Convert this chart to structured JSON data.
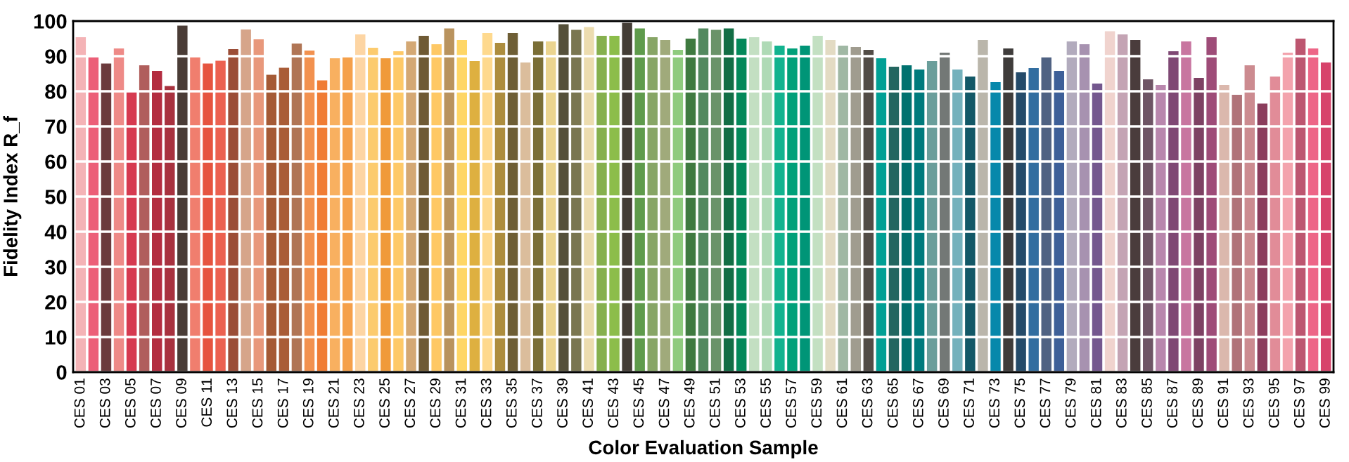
{
  "chart_data": {
    "type": "bar",
    "xlabel": "Color Evaluation Sample",
    "ylabel": "Fidelity Index R_f",
    "categories": [
      "CES 01",
      null,
      "CES 03",
      null,
      "CES 05",
      null,
      "CES 07",
      null,
      "CES 09",
      null,
      "CES 11",
      null,
      "CES 13",
      null,
      "CES 15",
      null,
      "CES 17",
      null,
      "CES 19",
      null,
      "CES 21",
      null,
      "CES 23",
      null,
      "CES 25",
      null,
      "CES 27",
      null,
      "CES 29",
      null,
      "CES 31",
      null,
      "CES 33",
      null,
      "CES 35",
      null,
      "CES 37",
      null,
      "CES 39",
      null,
      "CES 41",
      null,
      "CES 43",
      null,
      "CES 45",
      null,
      "CES 47",
      null,
      "CES 49",
      null,
      "CES 51",
      null,
      "CES 53",
      null,
      "CES 55",
      null,
      "CES 57",
      null,
      "CES 59",
      null,
      "CES 61",
      null,
      "CES 63",
      null,
      "CES 65",
      null,
      "CES 67",
      null,
      "CES 69",
      null,
      "CES 71",
      null,
      "CES 73",
      null,
      "CES 75",
      null,
      "CES 77",
      null,
      "CES 79",
      null,
      "CES 81",
      null,
      "CES 83",
      null,
      "CES 85",
      null,
      "CES 87",
      null,
      "CES 89",
      null,
      "CES 91",
      null,
      "CES 93",
      null,
      "CES 95",
      null,
      "CES 97",
      null,
      "CES 99"
    ],
    "values": [
      95.4,
      89.9,
      87.9,
      92.2,
      79.9,
      87.4,
      85.8,
      81.5,
      98.7,
      89.9,
      87.9,
      88.7,
      92.0,
      97.6,
      94.8,
      84.7,
      86.7,
      93.6,
      91.6,
      83.1,
      89.4,
      89.9,
      96.2,
      92.4,
      89.4,
      91.4,
      94.2,
      95.8,
      93.4,
      97.9,
      94.6,
      88.6,
      96.6,
      93.8,
      96.6,
      88.2,
      94.2,
      94.2,
      99.1,
      97.5,
      98.3,
      95.8,
      95.8,
      99.5,
      97.9,
      95.4,
      94.6,
      91.8,
      95.0,
      97.9,
      97.5,
      97.9,
      95.0,
      95.4,
      94.2,
      93.0,
      92.2,
      93.0,
      95.8,
      94.6,
      93.0,
      92.6,
      91.8,
      89.4,
      87.0,
      87.4,
      86.2,
      88.6,
      91.0,
      86.2,
      84.2,
      94.6,
      82.6,
      92.2,
      85.4,
      86.6,
      89.8,
      85.8,
      94.2,
      93.4,
      82.2,
      97.1,
      96.2,
      94.6,
      83.4,
      81.8,
      91.4,
      94.2,
      83.8,
      95.4,
      81.8,
      79.0,
      87.4,
      76.5,
      84.2,
      91.0,
      95.0,
      92.2,
      88.2
    ],
    "colors": [
      "#f4b3b6",
      "#ec5f78",
      "#6b3a3c",
      "#ee8a87",
      "#d63a50",
      "#b05e5c",
      "#b32d40",
      "#a8323f",
      "#4a3c36",
      "#f07e6e",
      "#e6543f",
      "#ec6150",
      "#9b4d37",
      "#d6a58a",
      "#e8987b",
      "#a55a35",
      "#a95c37",
      "#b07555",
      "#f2914f",
      "#f07c34",
      "#f8b060",
      "#f5a04a",
      "#fdd5a3",
      "#fccb6e",
      "#f09a3a",
      "#fec968",
      "#d4a874",
      "#6f5a34",
      "#fec865",
      "#b9935e",
      "#fed666",
      "#deb040",
      "#fed98e",
      "#ad8d3e",
      "#6e5e35",
      "#dbbd9c",
      "#7a6e36",
      "#ebd48f",
      "#55503a",
      "#7a7650",
      "#ecdcaf",
      "#86b04e",
      "#8cbd4a",
      "#443d36",
      "#5f9b4c",
      "#87a566",
      "#a0aa7b",
      "#8fcb7e",
      "#3f7a40",
      "#52895f",
      "#6a9369",
      "#126e45",
      "#04895a",
      "#c3dfc2",
      "#afdab6",
      "#12b38f",
      "#00a079",
      "#009577",
      "#c3e0c2",
      "#e3dbc3",
      "#a0b8a4",
      "#a09c8f",
      "#524c46",
      "#01a095",
      "#236660",
      "#00716f",
      "#007a7c",
      "#6a9e9b",
      "#737876",
      "#74b1bc",
      "#125867",
      "#bab6ab",
      "#0788ab",
      "#3f3c3b",
      "#254b6a",
      "#326ea0",
      "#4f6283",
      "#3d5f98",
      "#b2abbd",
      "#a792b0",
      "#74578e",
      "#f0d3ce",
      "#c4a4b4",
      "#4a3c3c",
      "#6e5565",
      "#b987ad",
      "#7f4874",
      "#c876a0",
      "#7e4163",
      "#9e4c78",
      "#dbb8ad",
      "#b07379",
      "#cc8b90",
      "#8b3d5c",
      "#e18c98",
      "#f3a3ad",
      "#bd5670",
      "#ed6687",
      "#d7436b"
    ],
    "ylim": [
      0,
      100
    ],
    "yticks": [
      0,
      10,
      20,
      30,
      40,
      50,
      60,
      70,
      80,
      90,
      100
    ],
    "grid": "y"
  }
}
